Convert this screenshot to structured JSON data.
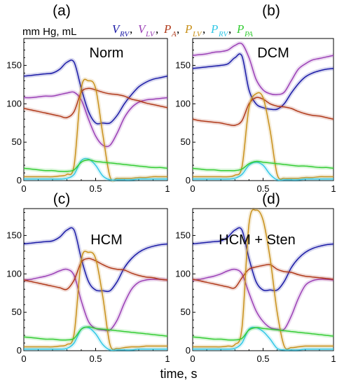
{
  "figure": {
    "ylabel": "mm Hg, mL",
    "xlabel": "time, s"
  },
  "legend": [
    {
      "main": "V",
      "sub": "RV",
      "color": "#1a1aa6"
    },
    {
      "main": "V",
      "sub": "LV",
      "color": "#9a3fb5"
    },
    {
      "main": "P",
      "sub": "A",
      "color": "#b03a1a"
    },
    {
      "main": "P",
      "sub": "LV",
      "color": "#c8901a"
    },
    {
      "main": "P",
      "sub": "RV",
      "color": "#33c8e6"
    },
    {
      "main": "P",
      "sub": "PA",
      "color": "#33cc33"
    }
  ],
  "chart_data": [
    {
      "type": "line",
      "panel": "(a)",
      "name": "Norm",
      "xlim": [
        0,
        1
      ],
      "ylim": [
        0,
        185
      ],
      "xticks": [
        "0",
        "0.5",
        "1"
      ],
      "yticks": [
        "0",
        "50",
        "100",
        "150"
      ],
      "x": [
        0,
        0.05,
        0.1,
        0.15,
        0.2,
        0.25,
        0.3,
        0.35,
        0.4,
        0.45,
        0.5,
        0.55,
        0.6,
        0.65,
        0.7,
        0.75,
        0.8,
        0.85,
        0.9,
        0.95,
        1
      ],
      "series": [
        {
          "name": "VRV",
          "values": [
            136,
            137,
            138,
            139,
            140,
            145,
            154,
            154,
            120,
            90,
            75,
            75,
            75,
            85,
            100,
            112,
            122,
            128,
            132,
            134,
            136
          ]
        },
        {
          "name": "VLV",
          "values": [
            108,
            108,
            109,
            110,
            110,
            112,
            114,
            115,
            105,
            80,
            58,
            46,
            46,
            62,
            82,
            95,
            102,
            105,
            106,
            107,
            108
          ]
        },
        {
          "name": "PA",
          "values": [
            94,
            92,
            90,
            88,
            86,
            84,
            82,
            90,
            115,
            120,
            118,
            115,
            113,
            112,
            110,
            106,
            104,
            101,
            99,
            97,
            95
          ]
        },
        {
          "name": "PLV",
          "values": [
            5,
            5,
            5,
            5,
            5,
            6,
            8,
            20,
            120,
            130,
            120,
            60,
            5,
            3,
            3,
            3,
            4,
            4,
            5,
            5,
            5
          ]
        },
        {
          "name": "PRV",
          "values": [
            2,
            2,
            2,
            2,
            2,
            2,
            3,
            8,
            26,
            28,
            20,
            6,
            1,
            1,
            1,
            1,
            2,
            2,
            2,
            2,
            2
          ]
        },
        {
          "name": "PPA",
          "values": [
            16,
            15,
            14,
            13,
            13,
            12,
            12,
            14,
            24,
            27,
            25,
            24,
            23,
            22,
            21,
            20,
            19,
            18,
            17,
            17,
            16
          ]
        }
      ]
    },
    {
      "type": "line",
      "panel": "(b)",
      "name": "DCM",
      "xlim": [
        0,
        1
      ],
      "ylim": [
        0,
        185
      ],
      "xticks": [
        "0",
        "0.5",
        "1"
      ],
      "yticks": [
        "0",
        "50",
        "100",
        "150"
      ],
      "x": [
        0,
        0.05,
        0.1,
        0.15,
        0.2,
        0.25,
        0.3,
        0.35,
        0.4,
        0.45,
        0.5,
        0.55,
        0.6,
        0.65,
        0.7,
        0.75,
        0.8,
        0.85,
        0.9,
        0.95,
        1
      ],
      "series": [
        {
          "name": "VRV",
          "values": [
            146,
            147,
            148,
            149,
            150,
            152,
            160,
            162,
            118,
            100,
            95,
            93,
            93,
            100,
            114,
            126,
            135,
            140,
            143,
            145,
            146
          ]
        },
        {
          "name": "VLV",
          "values": [
            163,
            164,
            165,
            167,
            168,
            170,
            176,
            178,
            160,
            132,
            118,
            113,
            112,
            115,
            130,
            145,
            152,
            157,
            159,
            161,
            163
          ]
        },
        {
          "name": "PA",
          "values": [
            80,
            78,
            77,
            76,
            75,
            73,
            72,
            78,
            100,
            108,
            106,
            100,
            97,
            96,
            94,
            90,
            87,
            85,
            84,
            82,
            80
          ]
        },
        {
          "name": "PLV",
          "values": [
            5,
            5,
            5,
            5,
            5,
            5,
            7,
            18,
            95,
            113,
            108,
            65,
            8,
            3,
            3,
            3,
            4,
            4,
            5,
            5,
            5
          ]
        },
        {
          "name": "PRV",
          "values": [
            2,
            2,
            2,
            2,
            2,
            2,
            3,
            8,
            20,
            24,
            20,
            8,
            1,
            1,
            1,
            1,
            2,
            2,
            2,
            2,
            2
          ]
        },
        {
          "name": "PPA",
          "values": [
            16,
            15,
            14,
            14,
            13,
            13,
            13,
            15,
            22,
            25,
            24,
            23,
            22,
            21,
            20,
            19,
            19,
            18,
            17,
            17,
            16
          ]
        }
      ]
    },
    {
      "type": "line",
      "panel": "(c)",
      "name": "HCM",
      "xlim": [
        0,
        1
      ],
      "ylim": [
        0,
        185
      ],
      "xticks": [
        "0",
        "0.5",
        "1"
      ],
      "yticks": [
        "0",
        "50",
        "100",
        "150"
      ],
      "x": [
        0,
        0.05,
        0.1,
        0.15,
        0.2,
        0.25,
        0.3,
        0.35,
        0.4,
        0.45,
        0.5,
        0.55,
        0.6,
        0.65,
        0.7,
        0.75,
        0.8,
        0.85,
        0.9,
        0.95,
        1
      ],
      "series": [
        {
          "name": "VRV",
          "values": [
            139,
            140,
            141,
            142,
            143,
            148,
            157,
            157,
            120,
            90,
            79,
            78,
            78,
            90,
            108,
            120,
            128,
            133,
            136,
            138,
            139
          ]
        },
        {
          "name": "VLV",
          "values": [
            92,
            93,
            95,
            97,
            100,
            104,
            106,
            98,
            65,
            38,
            29,
            27,
            27,
            40,
            62,
            80,
            89,
            92,
            93,
            93,
            92
          ]
        },
        {
          "name": "PA",
          "values": [
            92,
            90,
            88,
            86,
            84,
            82,
            80,
            92,
            115,
            120,
            117,
            112,
            108,
            106,
            105,
            101,
            98,
            96,
            95,
            93,
            92
          ]
        },
        {
          "name": "PLV",
          "values": [
            5,
            5,
            5,
            5,
            5,
            6,
            8,
            22,
            118,
            128,
            120,
            70,
            8,
            3,
            4,
            5,
            5,
            6,
            6,
            6,
            6
          ]
        },
        {
          "name": "PRV",
          "values": [
            2,
            2,
            2,
            2,
            2,
            2,
            3,
            10,
            28,
            30,
            22,
            8,
            1,
            1,
            1,
            1,
            2,
            2,
            2,
            2,
            2
          ]
        },
        {
          "name": "PPA",
          "values": [
            18,
            17,
            16,
            15,
            15,
            14,
            14,
            16,
            28,
            31,
            29,
            28,
            27,
            26,
            25,
            24,
            23,
            22,
            21,
            20,
            19
          ]
        }
      ]
    },
    {
      "type": "line",
      "panel": "(d)",
      "name": "HCM + Sten",
      "xlim": [
        0,
        1
      ],
      "ylim": [
        0,
        185
      ],
      "xticks": [
        "0",
        "0.5",
        "1"
      ],
      "yticks": [
        "0",
        "50",
        "100",
        "150"
      ],
      "x": [
        0,
        0.05,
        0.1,
        0.15,
        0.2,
        0.25,
        0.3,
        0.35,
        0.4,
        0.45,
        0.5,
        0.55,
        0.6,
        0.65,
        0.7,
        0.75,
        0.8,
        0.85,
        0.9,
        0.95,
        1
      ],
      "series": [
        {
          "name": "VRV",
          "values": [
            139,
            140,
            141,
            142,
            143,
            148,
            157,
            157,
            120,
            90,
            79,
            79,
            79,
            90,
            108,
            120,
            128,
            133,
            136,
            138,
            139
          ]
        },
        {
          "name": "VLV",
          "values": [
            92,
            93,
            95,
            97,
            100,
            104,
            106,
            100,
            75,
            52,
            38,
            30,
            28,
            28,
            45,
            68,
            85,
            91,
            93,
            93,
            92
          ]
        },
        {
          "name": "PA",
          "values": [
            93,
            91,
            89,
            87,
            85,
            83,
            82,
            95,
            106,
            109,
            111,
            112,
            106,
            103,
            102,
            99,
            97,
            96,
            95,
            94,
            93
          ]
        },
        {
          "name": "PLV",
          "values": [
            5,
            5,
            5,
            5,
            5,
            6,
            8,
            30,
            165,
            183,
            170,
            120,
            50,
            6,
            4,
            5,
            6,
            6,
            6,
            6,
            6
          ]
        },
        {
          "name": "PRV",
          "values": [
            2,
            2,
            2,
            2,
            2,
            2,
            3,
            10,
            28,
            30,
            25,
            15,
            3,
            1,
            1,
            1,
            2,
            2,
            2,
            2,
            2
          ]
        },
        {
          "name": "PPA",
          "values": [
            18,
            17,
            16,
            15,
            15,
            14,
            14,
            16,
            27,
            30,
            29,
            28,
            27,
            26,
            25,
            24,
            23,
            22,
            21,
            20,
            19
          ]
        }
      ]
    }
  ]
}
